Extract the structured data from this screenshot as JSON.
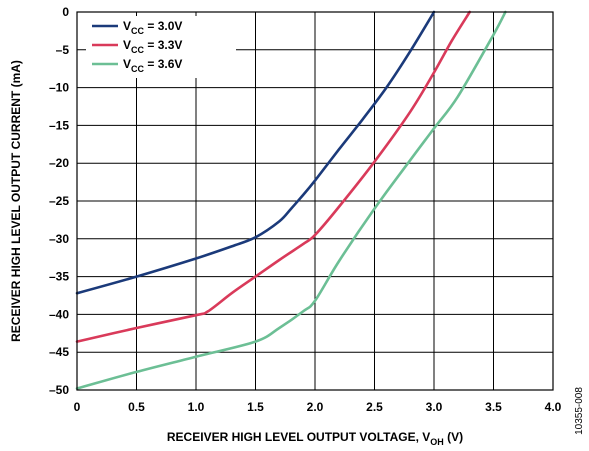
{
  "chart_data": {
    "type": "line",
    "xlabel": {
      "main": "RECEIVER HIGH LEVEL OUTPUT VOLTAGE, V",
      "sub": "OH",
      "unit": " (V)"
    },
    "ylabel": "RECEIVER HIGH LEVEL OUTPUT CURRENT (mA)",
    "xlim": [
      0,
      4.0
    ],
    "ylim": [
      -50,
      0
    ],
    "x_ticks": [
      "0",
      "0.5",
      "1.0",
      "1.5",
      "2.0",
      "2.5",
      "3.0",
      "3.5",
      "4.0"
    ],
    "y_ticks": [
      "0",
      "–5",
      "–10",
      "–15",
      "–20",
      "–25",
      "–30",
      "–35",
      "–40",
      "–45",
      "–50"
    ],
    "grid": true,
    "legend_placement": "top-left",
    "figure_id": "10355-008",
    "series": [
      {
        "label": {
          "pre": "V",
          "sub": "CC",
          "post": " = 3.0V"
        },
        "color": "#1b3a7a",
        "x": [
          0,
          0.5,
          1.0,
          1.3,
          1.5,
          1.7,
          1.8,
          1.9,
          2.0,
          2.2,
          2.4,
          2.6,
          2.8,
          3.0
        ],
        "y": [
          -37.2,
          -35.0,
          -32.6,
          -31.0,
          -29.8,
          -27.7,
          -26.0,
          -24.2,
          -22.3,
          -18.2,
          -14.2,
          -10.0,
          -5.2,
          0
        ]
      },
      {
        "label": {
          "pre": "V",
          "sub": "CC",
          "post": " = 3.3V"
        },
        "color": "#d93a5a",
        "x": [
          0,
          0.5,
          1.0,
          1.1,
          1.3,
          1.5,
          1.7,
          1.9,
          2.0,
          2.2,
          2.5,
          2.8,
          3.0,
          3.15,
          3.3
        ],
        "y": [
          -43.6,
          -41.8,
          -40.1,
          -39.6,
          -37.2,
          -35.0,
          -32.8,
          -30.7,
          -29.5,
          -25.8,
          -19.8,
          -13.2,
          -8.0,
          -3.8,
          0
        ]
      },
      {
        "label": {
          "pre": "V",
          "sub": "CC",
          "post": " = 3.6V"
        },
        "color": "#6cbf95",
        "x": [
          0,
          0.5,
          1.0,
          1.5,
          1.7,
          1.9,
          2.0,
          2.2,
          2.5,
          2.8,
          3.0,
          3.2,
          3.5,
          3.6
        ],
        "y": [
          -49.8,
          -47.6,
          -45.6,
          -43.6,
          -41.8,
          -39.6,
          -38.2,
          -33.0,
          -26.0,
          -19.6,
          -15.4,
          -11.2,
          -3.0,
          0
        ]
      }
    ]
  }
}
